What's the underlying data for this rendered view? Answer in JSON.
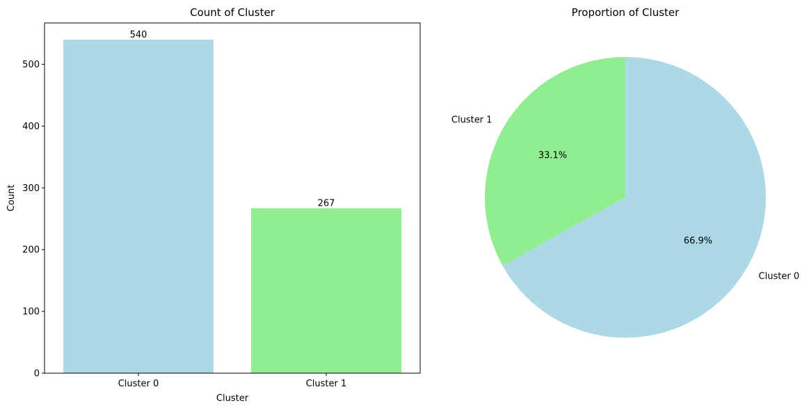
{
  "chart_data": [
    {
      "type": "bar",
      "title": "Count of Cluster",
      "xlabel": "Cluster",
      "ylabel": "Count",
      "categories": [
        "Cluster 0",
        "Cluster 1"
      ],
      "values": [
        540,
        267
      ],
      "value_labels": [
        "540",
        "267"
      ],
      "colors": [
        "#add8e6",
        "#90ee90"
      ],
      "ylim": [
        0,
        567
      ],
      "yticks": [
        0,
        100,
        200,
        300,
        400,
        500
      ],
      "ytick_labels": [
        "0",
        "100",
        "200",
        "300",
        "400",
        "500"
      ],
      "grid": false
    },
    {
      "type": "pie",
      "title": "Proportion of Cluster",
      "labels": [
        "Cluster 0",
        "Cluster 1"
      ],
      "values": [
        540,
        267
      ],
      "percent_labels": [
        "66.9%",
        "33.1%"
      ],
      "colors": [
        "#add8e6",
        "#90ee90"
      ],
      "start_angle": 90,
      "direction": "clockwise"
    }
  ]
}
